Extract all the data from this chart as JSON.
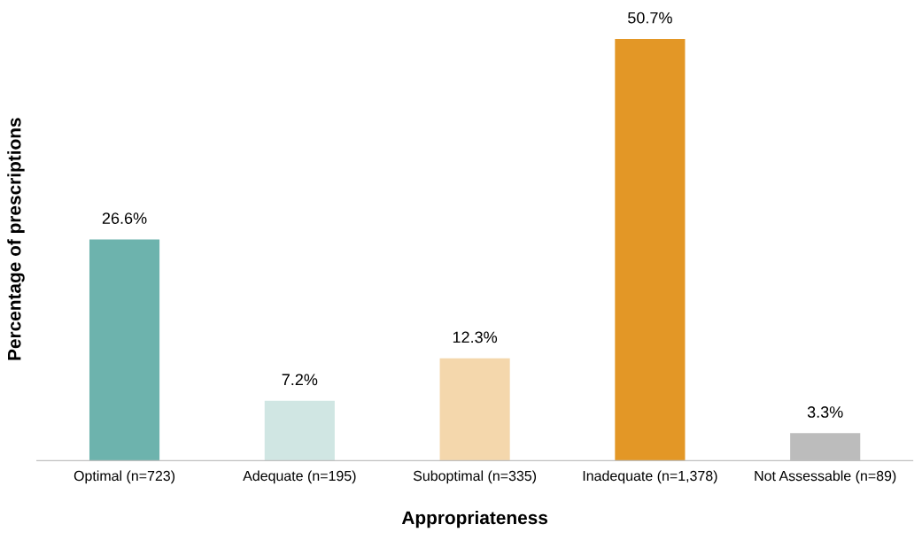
{
  "chart_data": {
    "type": "bar",
    "xlabel": "Appropriateness",
    "ylabel": "Percentage of prescriptions",
    "categories": [
      "Optimal (n=723)",
      "Adequate (n=195)",
      "Suboptimal (n=335)",
      "Inadequate (n=1,378)",
      "Not Assessable (n=89)"
    ],
    "values": [
      26.6,
      7.2,
      12.3,
      50.7,
      3.3
    ],
    "colors": [
      "#6db3ad",
      "#d0e6e3",
      "#f4d7ac",
      "#e39726",
      "#bcbcbc"
    ],
    "value_labels": [
      "26.6%",
      "7.2%",
      "12.3%",
      "50.7%",
      "3.3%"
    ],
    "grid": false,
    "legend": false
  }
}
